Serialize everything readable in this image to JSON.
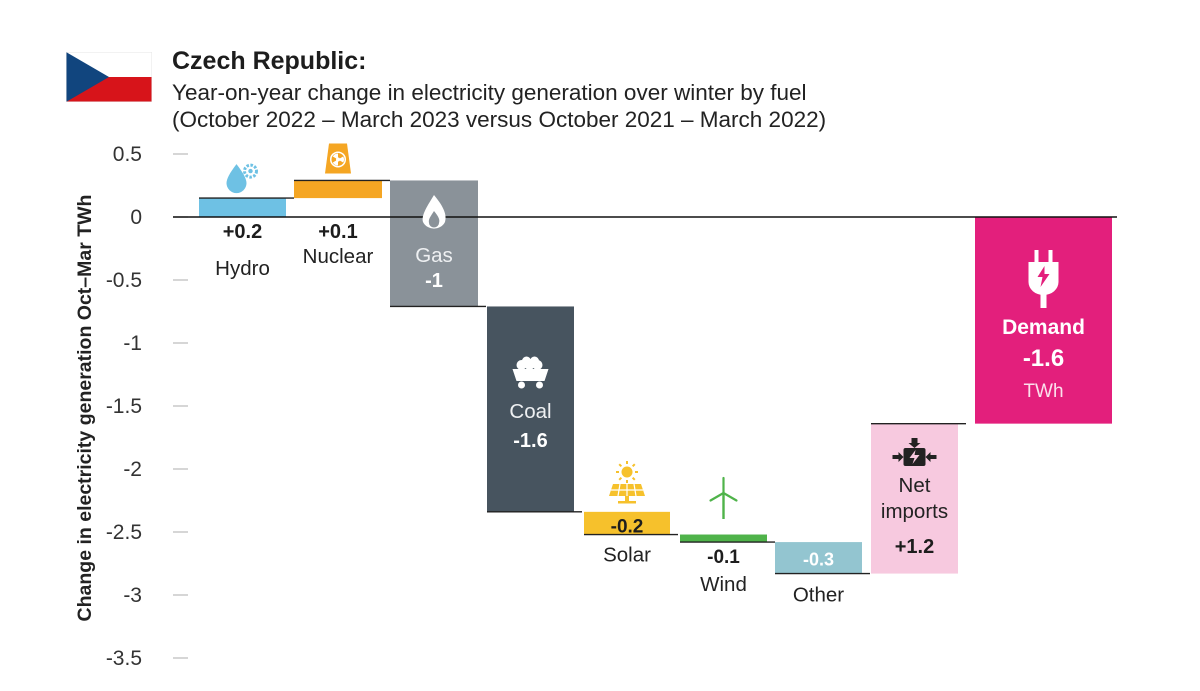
{
  "title": "Czech Republic:",
  "subtitle_line1": "Year-on-year change in electricity generation over winter by fuel",
  "subtitle_line2": "(October 2022 – March 2023 versus October 2021 – March 2022)",
  "colors": {
    "flag_white": "#ffffff",
    "flag_red": "#d7141a",
    "flag_blue": "#11457e",
    "hydro": "#6ec1e4",
    "nuclear": "#f5a623",
    "gas": "#8a9299",
    "coal": "#47545f",
    "solar": "#f6c12c",
    "wind": "#4fb34a",
    "other": "#93c5d0",
    "net_imports": "#f7c9df",
    "demand": "#e31f7c"
  },
  "chart_data": {
    "type": "waterfall",
    "ylabel": "Change in electricity generation Oct–Mar TWh",
    "ylim": [
      -3.5,
      0.5
    ],
    "yticks": [
      0.5,
      0,
      -0.5,
      -1,
      -1.5,
      -2,
      -2.5,
      -3,
      -3.5
    ],
    "ytick_labels": [
      "0.5",
      "0",
      "-0.5",
      "-1",
      "-1.5",
      "-2",
      "-2.5",
      "-3",
      "-3.5"
    ],
    "grid": false,
    "unit": "TWh",
    "bars": [
      {
        "key": "hydro",
        "category": "Hydro",
        "value_label": "+0.2",
        "start": 0,
        "end": 0.15,
        "icon": "water-drop-gear-icon",
        "total": false
      },
      {
        "key": "nuclear",
        "category": "Nuclear",
        "value_label": "+0.1",
        "start": 0.15,
        "end": 0.29,
        "icon": "nuclear-plant-icon",
        "total": false
      },
      {
        "key": "gas",
        "category": "Gas",
        "value_label": "-1",
        "start": 0.29,
        "end": -0.71,
        "icon": "gas-flame-icon",
        "total": false
      },
      {
        "key": "coal",
        "category": "Coal",
        "value_label": "-1.6",
        "start": -0.71,
        "end": -2.34,
        "icon": "coal-cart-icon",
        "total": false
      },
      {
        "key": "solar",
        "category": "Solar",
        "value_label": "-0.2",
        "start": -2.34,
        "end": -2.52,
        "icon": "solar-panel-icon",
        "total": false
      },
      {
        "key": "wind",
        "category": "Wind",
        "value_label": "-0.1",
        "start": -2.52,
        "end": -2.58,
        "icon": "wind-turbine-icon",
        "total": false
      },
      {
        "key": "other",
        "category": "Other",
        "value_label": "-0.3",
        "start": -2.58,
        "end": -2.83,
        "icon": "",
        "total": false
      },
      {
        "key": "net_imports",
        "category": "Net imports",
        "category_lines": [
          "Net",
          "imports"
        ],
        "value_label": "+1.2",
        "start": -2.83,
        "end": -1.64,
        "icon": "power-import-icon",
        "total": false
      },
      {
        "key": "demand",
        "category": "Demand",
        "value_label": "-1.6",
        "unit_label": "TWh",
        "start": 0,
        "end": -1.64,
        "icon": "plug-icon",
        "total": true
      }
    ]
  }
}
